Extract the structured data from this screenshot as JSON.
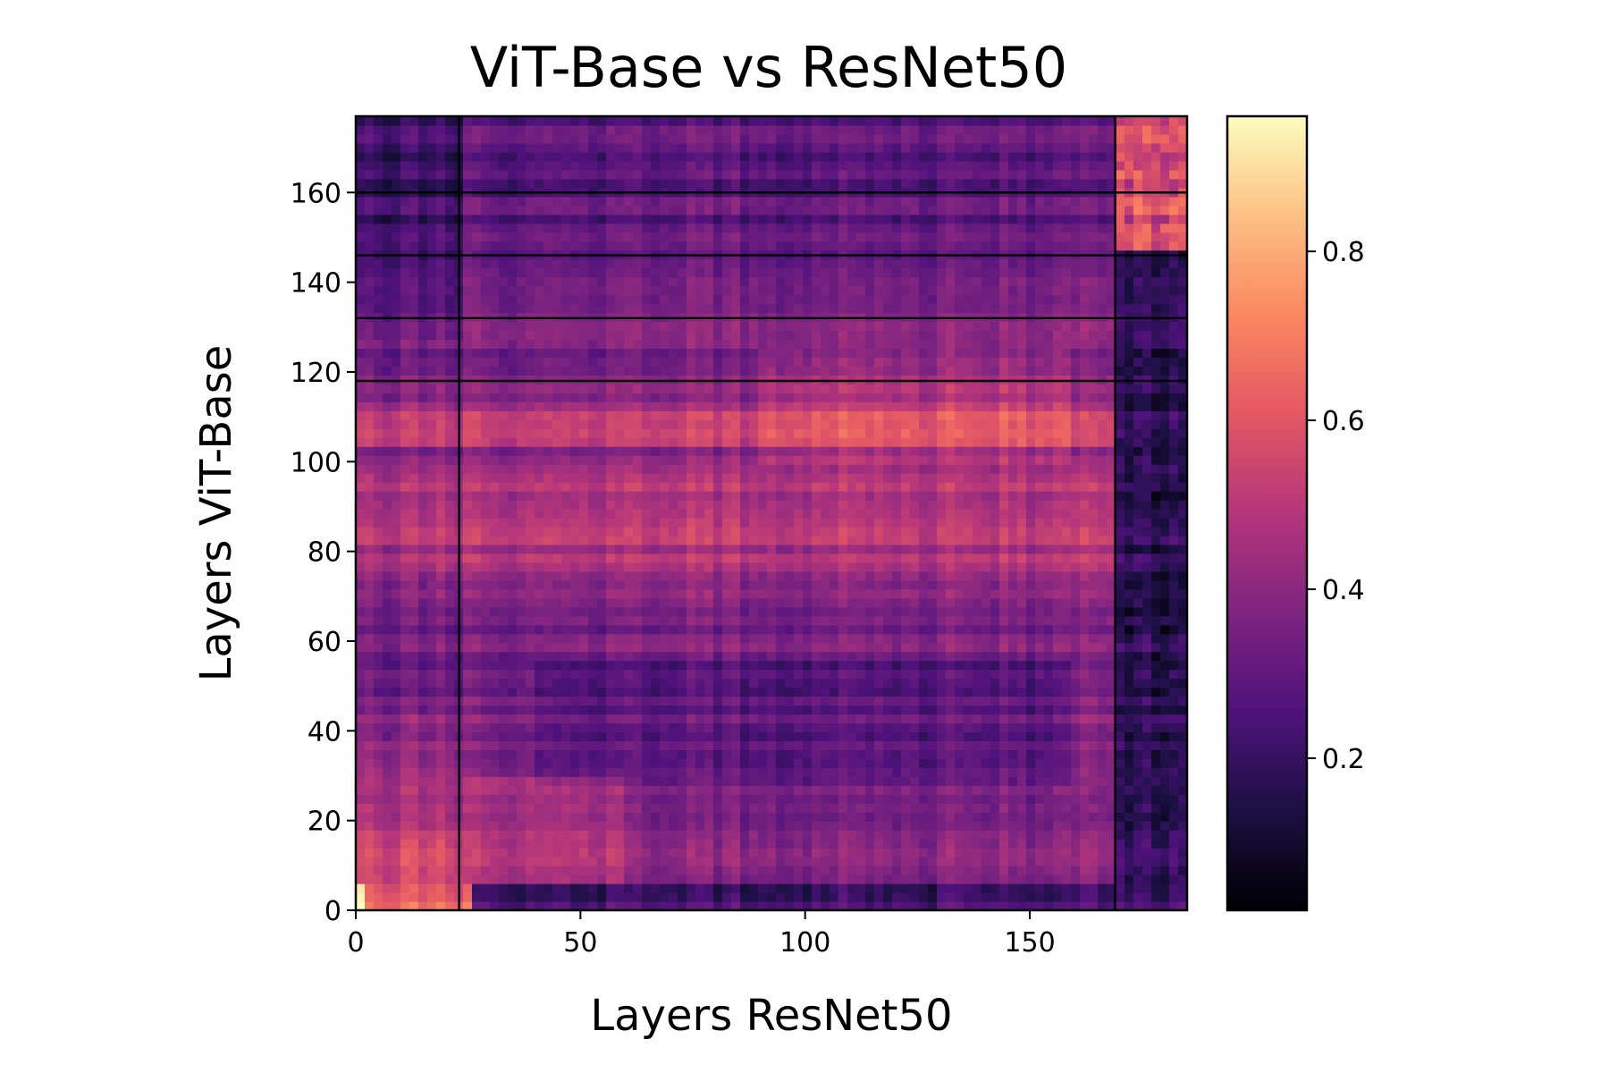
{
  "chart_data": {
    "type": "heatmap",
    "title": "ViT-Base vs ResNet50",
    "xlabel": "Layers ResNet50",
    "ylabel": "Layers ViT-Base",
    "x_range": [
      0,
      185
    ],
    "y_range": [
      0,
      177
    ],
    "x_ticks": [
      0,
      50,
      100,
      150
    ],
    "y_ticks": [
      0,
      20,
      40,
      60,
      80,
      100,
      120,
      140,
      160
    ],
    "x_tick_labels": [
      "0",
      "50",
      "100",
      "150"
    ],
    "y_tick_labels": [
      "0",
      "20",
      "40",
      "60",
      "80",
      "100",
      "120",
      "140",
      "160"
    ],
    "colorbar": {
      "colormap": "magma",
      "range": [
        0.02,
        0.96
      ],
      "ticks": [
        0.2,
        0.4,
        0.6,
        0.8
      ],
      "tick_labels": [
        "0.2",
        "0.4",
        "0.6",
        "0.8"
      ]
    },
    "vertical_separators_x": [
      23,
      169
    ],
    "horizontal_separators_y": [
      160,
      146,
      132,
      118
    ]
  }
}
